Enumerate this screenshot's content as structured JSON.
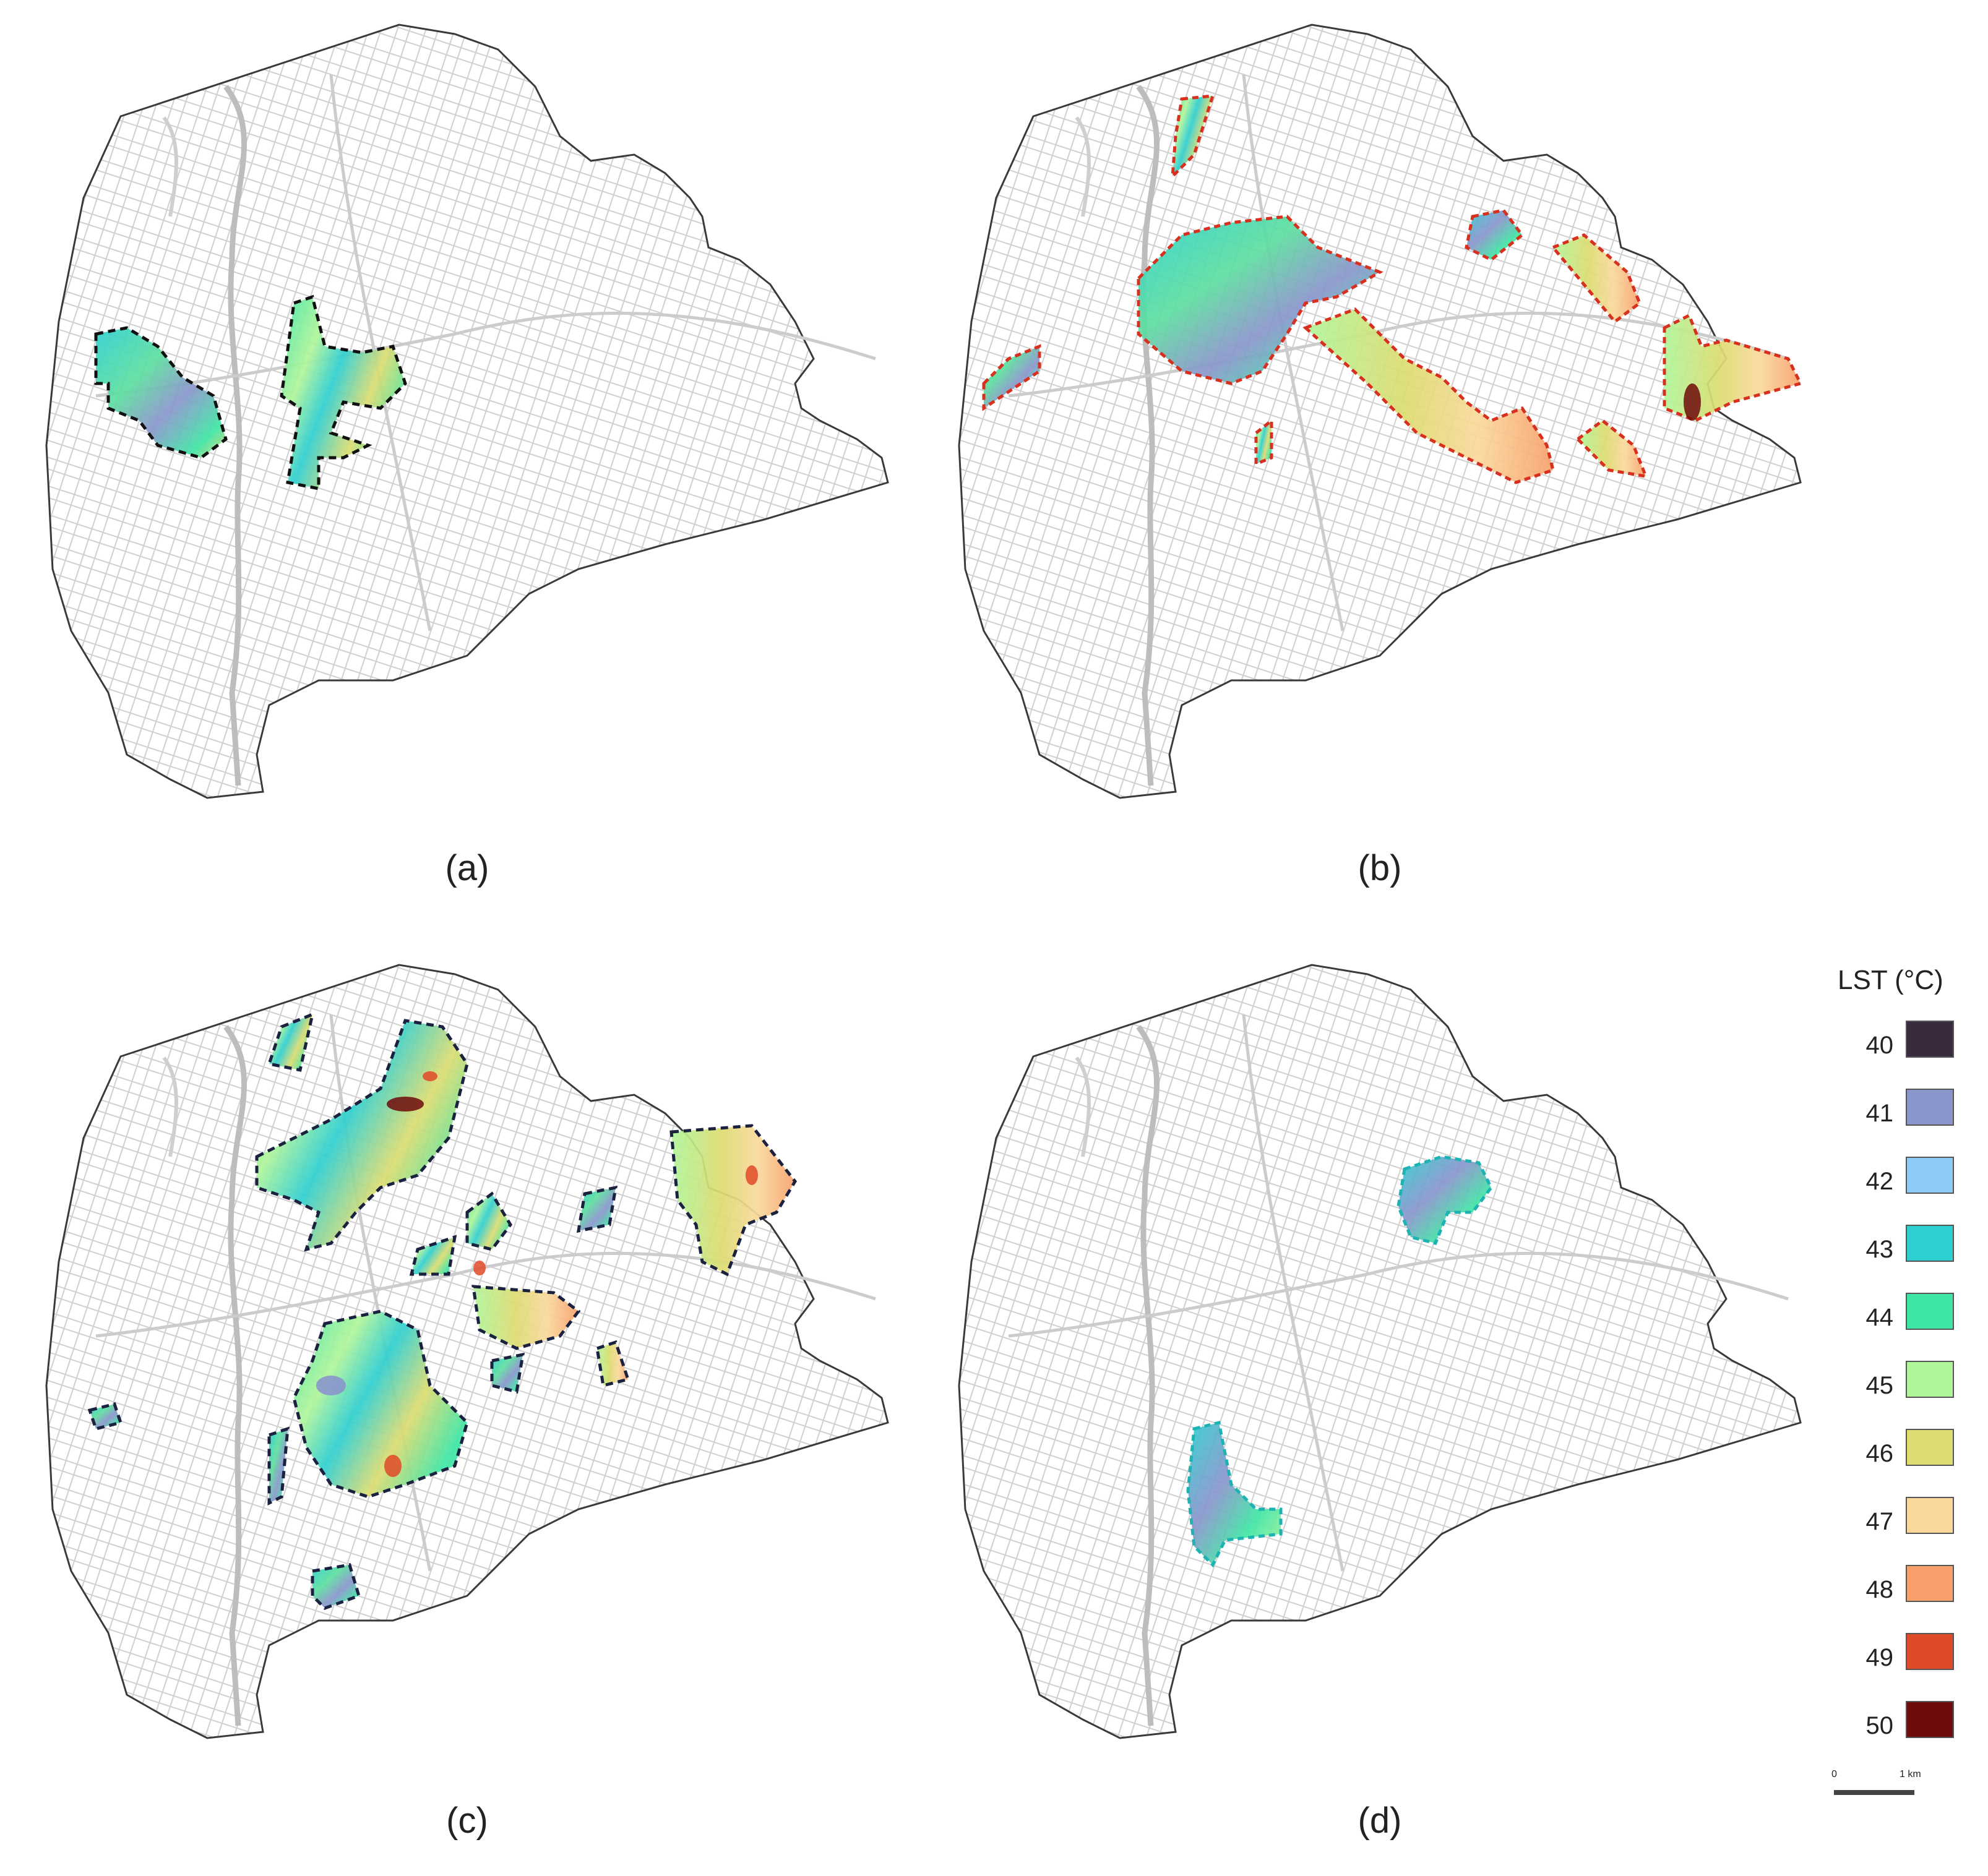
{
  "panels": [
    {
      "label": "(a)",
      "zone_outline": "#111111"
    },
    {
      "label": "(b)",
      "zone_outline": "#d7301f"
    },
    {
      "label": "(c)",
      "zone_outline": "#1a2240"
    },
    {
      "label": "(d)",
      "zone_outline": "#1db3b3"
    }
  ],
  "legend": {
    "title": "LST (°C)",
    "entries": [
      {
        "value": "40",
        "color": "#3a2a3d"
      },
      {
        "value": "41",
        "color": "#8a95cc"
      },
      {
        "value": "42",
        "color": "#8ecbf5"
      },
      {
        "value": "43",
        "color": "#2ecfd0"
      },
      {
        "value": "44",
        "color": "#3fe5a5"
      },
      {
        "value": "45",
        "color": "#b0f59a"
      },
      {
        "value": "46",
        "color": "#dcdc70"
      },
      {
        "value": "47",
        "color": "#fad89c"
      },
      {
        "value": "48",
        "color": "#f7a06b"
      },
      {
        "value": "49",
        "color": "#df4a28"
      },
      {
        "value": "50",
        "color": "#6e0b0b"
      }
    ]
  },
  "scale_bar": {
    "start": "0",
    "end": "1 km"
  }
}
